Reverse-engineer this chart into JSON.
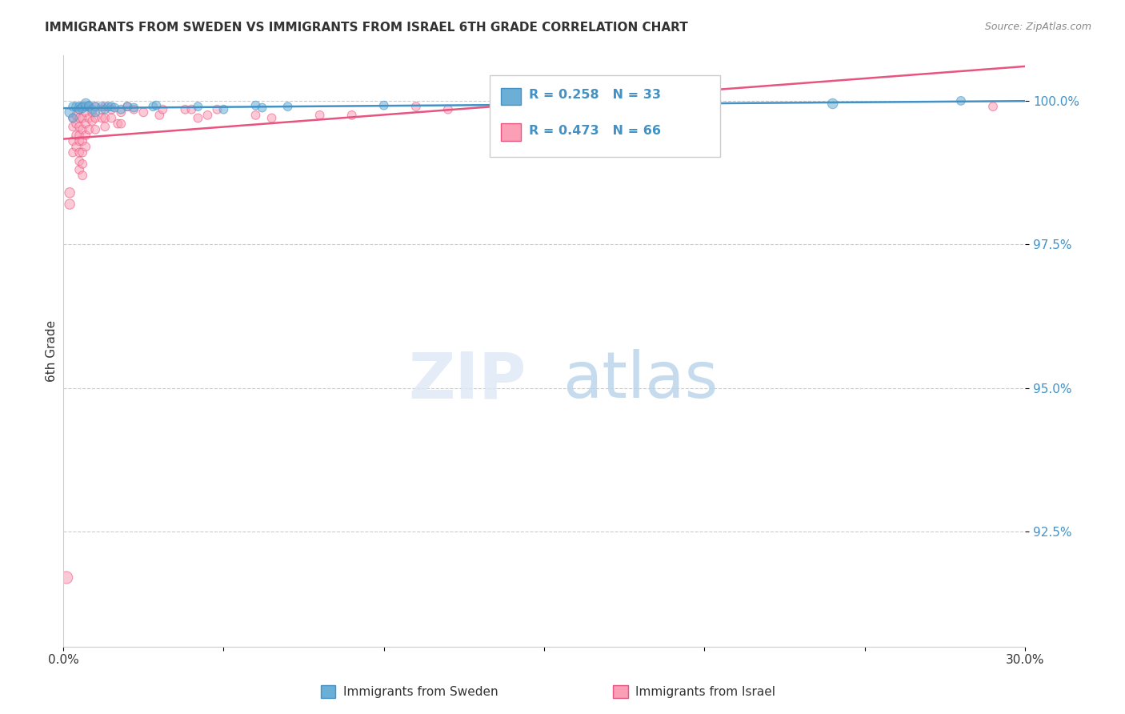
{
  "title": "IMMIGRANTS FROM SWEDEN VS IMMIGRANTS FROM ISRAEL 6TH GRADE CORRELATION CHART",
  "source": "Source: ZipAtlas.com",
  "ylabel": "6th Grade",
  "xlim": [
    0.0,
    0.3
  ],
  "ylim": [
    0.905,
    1.008
  ],
  "yticks": [
    0.925,
    0.95,
    0.975,
    1.0
  ],
  "ytick_labels": [
    "92.5%",
    "95.0%",
    "97.5%",
    "100.0%"
  ],
  "legend_r_sweden": "R = 0.258",
  "legend_n_sweden": "N = 33",
  "legend_r_israel": "R = 0.473",
  "legend_n_israel": "N = 66",
  "sweden_color": "#6baed6",
  "israel_color": "#fa9fb5",
  "sweden_line_color": "#4292c6",
  "israel_line_color": "#e75480",
  "sweden_points": [
    [
      0.002,
      0.998
    ],
    [
      0.003,
      0.997
    ],
    [
      0.003,
      0.999
    ],
    [
      0.004,
      0.999
    ],
    [
      0.005,
      0.999
    ],
    [
      0.005,
      0.9985
    ],
    [
      0.006,
      0.999
    ],
    [
      0.006,
      0.9988
    ],
    [
      0.007,
      0.999
    ],
    [
      0.007,
      0.9995
    ],
    [
      0.008,
      0.999
    ],
    [
      0.008,
      0.9992
    ],
    [
      0.009,
      0.9985
    ],
    [
      0.01,
      0.999
    ],
    [
      0.01,
      0.998
    ],
    [
      0.012,
      0.999
    ],
    [
      0.013,
      0.9985
    ],
    [
      0.014,
      0.999
    ],
    [
      0.015,
      0.999
    ],
    [
      0.016,
      0.9988
    ],
    [
      0.018,
      0.9985
    ],
    [
      0.02,
      0.999
    ],
    [
      0.022,
      0.9988
    ],
    [
      0.028,
      0.999
    ],
    [
      0.029,
      0.9992
    ],
    [
      0.042,
      0.999
    ],
    [
      0.05,
      0.9985
    ],
    [
      0.06,
      0.9992
    ],
    [
      0.062,
      0.9988
    ],
    [
      0.07,
      0.999
    ],
    [
      0.1,
      0.9992
    ],
    [
      0.24,
      0.9995
    ],
    [
      0.28,
      1.0
    ]
  ],
  "sweden_sizes": [
    80,
    60,
    60,
    60,
    60,
    60,
    60,
    80,
    60,
    80,
    60,
    60,
    60,
    60,
    60,
    60,
    60,
    60,
    60,
    60,
    60,
    60,
    60,
    60,
    60,
    60,
    60,
    60,
    60,
    60,
    60,
    80,
    60
  ],
  "israel_points": [
    [
      0.001,
      0.917
    ],
    [
      0.002,
      0.982
    ],
    [
      0.002,
      0.984
    ],
    [
      0.003,
      0.997
    ],
    [
      0.003,
      0.9955
    ],
    [
      0.003,
      0.993
    ],
    [
      0.003,
      0.991
    ],
    [
      0.004,
      0.9975
    ],
    [
      0.004,
      0.996
    ],
    [
      0.004,
      0.994
    ],
    [
      0.004,
      0.992
    ],
    [
      0.005,
      0.9985
    ],
    [
      0.005,
      0.997
    ],
    [
      0.005,
      0.9955
    ],
    [
      0.005,
      0.994
    ],
    [
      0.005,
      0.993
    ],
    [
      0.005,
      0.991
    ],
    [
      0.005,
      0.9895
    ],
    [
      0.005,
      0.988
    ],
    [
      0.006,
      0.999
    ],
    [
      0.006,
      0.997
    ],
    [
      0.006,
      0.995
    ],
    [
      0.006,
      0.993
    ],
    [
      0.006,
      0.991
    ],
    [
      0.006,
      0.989
    ],
    [
      0.006,
      0.987
    ],
    [
      0.007,
      0.998
    ],
    [
      0.007,
      0.996
    ],
    [
      0.007,
      0.994
    ],
    [
      0.007,
      0.992
    ],
    [
      0.008,
      0.999
    ],
    [
      0.008,
      0.997
    ],
    [
      0.008,
      0.995
    ],
    [
      0.009,
      0.998
    ],
    [
      0.009,
      0.9965
    ],
    [
      0.01,
      0.999
    ],
    [
      0.01,
      0.997
    ],
    [
      0.01,
      0.995
    ],
    [
      0.012,
      0.9985
    ],
    [
      0.012,
      0.997
    ],
    [
      0.013,
      0.999
    ],
    [
      0.013,
      0.997
    ],
    [
      0.013,
      0.9955
    ],
    [
      0.015,
      0.9985
    ],
    [
      0.015,
      0.997
    ],
    [
      0.017,
      0.996
    ],
    [
      0.018,
      0.998
    ],
    [
      0.018,
      0.996
    ],
    [
      0.02,
      0.999
    ],
    [
      0.022,
      0.9985
    ],
    [
      0.025,
      0.998
    ],
    [
      0.03,
      0.9975
    ],
    [
      0.031,
      0.9985
    ],
    [
      0.038,
      0.9985
    ],
    [
      0.04,
      0.9985
    ],
    [
      0.042,
      0.997
    ],
    [
      0.045,
      0.9975
    ],
    [
      0.048,
      0.9985
    ],
    [
      0.06,
      0.9975
    ],
    [
      0.065,
      0.997
    ],
    [
      0.08,
      0.9975
    ],
    [
      0.09,
      0.9975
    ],
    [
      0.11,
      0.999
    ],
    [
      0.12,
      0.9985
    ],
    [
      0.15,
      0.9985
    ],
    [
      0.29,
      0.999
    ]
  ],
  "israel_sizes": [
    120,
    80,
    80,
    60,
    60,
    60,
    60,
    60,
    60,
    60,
    60,
    60,
    60,
    60,
    60,
    60,
    60,
    60,
    60,
    60,
    60,
    60,
    60,
    60,
    60,
    60,
    60,
    60,
    60,
    60,
    60,
    60,
    60,
    60,
    60,
    60,
    60,
    60,
    60,
    60,
    60,
    60,
    60,
    60,
    60,
    60,
    60,
    60,
    60,
    60,
    60,
    60,
    60,
    60,
    60,
    60,
    60,
    60,
    60,
    60,
    60,
    60,
    60,
    60,
    60,
    60
  ]
}
